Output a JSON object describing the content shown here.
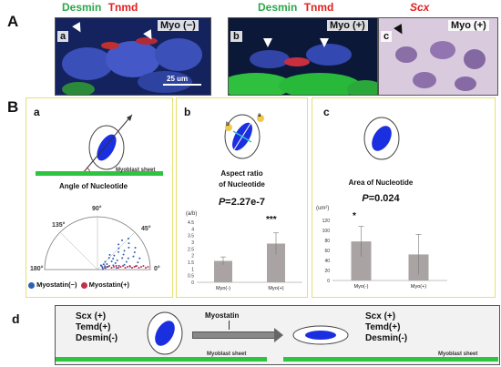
{
  "panel_A": {
    "label": "A",
    "desmin": "Desmin",
    "tnmd": "Tnmd",
    "scx": "Scx",
    "a": {
      "letter": "a",
      "myo": "Myo (−)",
      "scale": "25 um"
    },
    "b": {
      "letter": "b",
      "myo": "Myo (+)"
    },
    "c": {
      "letter": "c",
      "myo": "Myo (+)"
    }
  },
  "panel_B": {
    "label": "B",
    "a": {
      "letter": "a",
      "sheet": "Myoblast sheet",
      "title": "Angle of Nucleotide",
      "angles": [
        "90°",
        "135°",
        "45°",
        "180°",
        "0°"
      ],
      "legend_neg": "Myostatin(−)",
      "legend_pos": "Myostatin(+)",
      "colors": {
        "neg": "#2f5fb5",
        "pos": "#c0304a"
      }
    },
    "b": {
      "letter": "b",
      "title_1": "Aspect ratio",
      "title_2": "of Nucleotide",
      "p_label": "P",
      "p_value": "=2.27e-7",
      "sig": "***",
      "unit": "(a/b)",
      "ab_a": "a",
      "ab_b": "b"
    },
    "c": {
      "letter": "c",
      "title": "Area of Nucleotide",
      "p_label": "P",
      "p_value": "=0.024",
      "sig": "*",
      "unit": "(um²)"
    }
  },
  "panel_d": {
    "label": "d",
    "left": [
      "Scx (+)",
      "Temd(+)",
      "Desmin(-)"
    ],
    "right": [
      "Scx (+)",
      "Temd(+)",
      "Desmin(-)"
    ],
    "treatment": "Myostatin",
    "sheet": "Myoblast sheet"
  },
  "chart_data": [
    {
      "type": "bar",
      "categories": [
        "Myo(-)",
        "Myo(+)"
      ],
      "values": [
        1.6,
        2.9
      ],
      "errors": [
        0.3,
        0.8
      ],
      "yticks": [
        "0",
        "0.5",
        "1",
        "1.5",
        "2",
        "2.5",
        "3",
        "3.5",
        "4",
        "4.5"
      ],
      "ylim": [
        0,
        4.5
      ]
    },
    {
      "type": "bar",
      "categories": [
        "Myo(-)",
        "Myo(+)"
      ],
      "values": [
        78,
        52
      ],
      "errors": [
        30,
        40
      ],
      "yticks": [
        "0",
        "20",
        "40",
        "60",
        "80",
        "100",
        "120"
      ],
      "ylim": [
        0,
        120
      ]
    }
  ]
}
